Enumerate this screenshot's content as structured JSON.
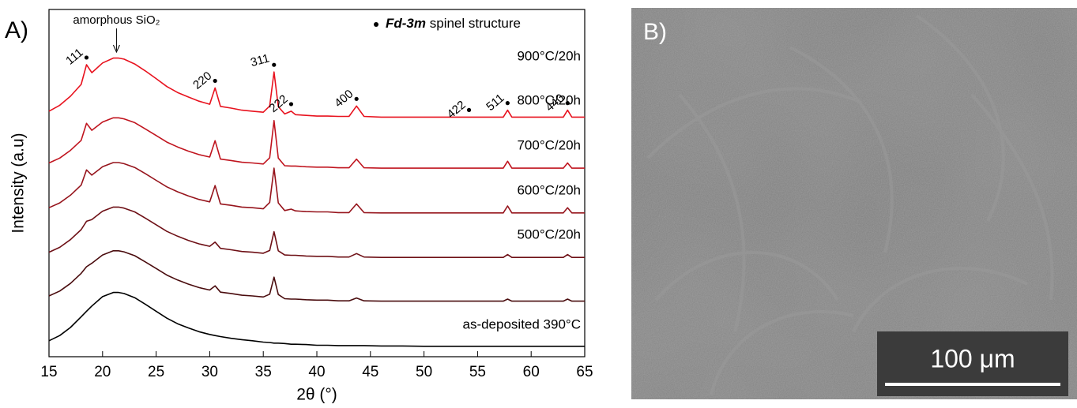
{
  "chart_data": {
    "type": "line",
    "panel_label": "A)",
    "xlabel": "2θ (°)",
    "ylabel": "Intensity (a.u)",
    "xlim": [
      15,
      65
    ],
    "ylim": [
      0,
      100
    ],
    "xticks": [
      15,
      20,
      25,
      30,
      35,
      40,
      45,
      50,
      55,
      60,
      65
    ],
    "legend": {
      "bold": "Fd-3m",
      "text": "spinel structure"
    },
    "amorphous_label": {
      "text": "amorphous SiO₂",
      "x": 21.3
    },
    "annotations": [
      {
        "text": "111",
        "x": 18.5
      },
      {
        "text": "220",
        "x": 30.5
      },
      {
        "text": "311",
        "x": 36
      },
      {
        "text": "222",
        "x": 37.6
      },
      {
        "text": "400",
        "x": 43.7
      },
      {
        "text": "422",
        "x": 54.2
      },
      {
        "text": "511",
        "x": 57.8
      },
      {
        "text": "440",
        "x": 63.4
      }
    ],
    "x": [
      15,
      16,
      17,
      18,
      18.5,
      19,
      20,
      21,
      21.5,
      22,
      23,
      24,
      25,
      26,
      27,
      28,
      29,
      30,
      30.5,
      31,
      32,
      33,
      34,
      35,
      35.6,
      36,
      36.4,
      37,
      37.6,
      38,
      39,
      40,
      41,
      42,
      43,
      43.7,
      44.4,
      46,
      48,
      50,
      52,
      54,
      56,
      57.4,
      57.8,
      58.2,
      60,
      62,
      63,
      63.4,
      63.8,
      65
    ],
    "series": [
      {
        "name": "900°C/20h",
        "color": "#e8121e",
        "values": [
          70.7,
          72.4,
          75.0,
          78.4,
          84.1,
          81.8,
          84.6,
          86.0,
          86.0,
          85.7,
          84.3,
          82.3,
          80.1,
          77.8,
          76.1,
          74.8,
          73.6,
          72.7,
          77.4,
          72.1,
          71.6,
          71.0,
          70.7,
          70.4,
          72.2,
          82.0,
          72.0,
          69.9,
          70.7,
          69.7,
          69.5,
          69.3,
          69.3,
          69.2,
          69.2,
          72.2,
          69.2,
          69,
          69,
          69,
          69,
          69,
          69,
          69,
          71,
          69,
          69,
          69,
          69,
          71,
          69,
          69
        ]
      },
      {
        "name": "800°C/20h",
        "color": "#c0141e",
        "values": [
          55.8,
          57.2,
          59.4,
          62.3,
          67.2,
          65.2,
          67.6,
          68.8,
          68.8,
          68.5,
          67.4,
          65.6,
          63.7,
          61.8,
          60.4,
          59.2,
          58.2,
          57.5,
          62.2,
          56.9,
          56.5,
          56.0,
          55.8,
          55.5,
          57.3,
          68.0,
          57.2,
          55.0,
          54.9,
          54.9,
          54.7,
          54.6,
          54.6,
          54.4,
          54.4,
          56.9,
          54.4,
          54.3,
          54.3,
          54.3,
          54.3,
          54.3,
          54.3,
          54.3,
          56.3,
          54.3,
          54.3,
          54.3,
          54.3,
          55.8,
          54.3,
          54.3
        ]
      },
      {
        "name": "700°C/20h",
        "color": "#96141c",
        "values": [
          42.9,
          44.3,
          46.5,
          49.4,
          53.8,
          52.3,
          54.7,
          55.9,
          55.9,
          55.6,
          54.5,
          52.7,
          50.8,
          48.9,
          47.5,
          46.3,
          45.3,
          44.6,
          49.3,
          44.0,
          43.6,
          43.1,
          42.9,
          42.6,
          44.4,
          54.3,
          44.3,
          42.1,
          42.5,
          42.0,
          41.8,
          41.7,
          41.7,
          41.5,
          41.5,
          44.0,
          41.5,
          41.4,
          41.4,
          41.4,
          41.4,
          41.4,
          41.4,
          41.4,
          43.4,
          41.4,
          41.4,
          41.4,
          41.4,
          42.9,
          41.4,
          41.4
        ]
      },
      {
        "name": "600°C/20h",
        "color": "#6e1016",
        "values": [
          30.1,
          31.5,
          33.7,
          36.6,
          39.0,
          39.5,
          41.9,
          43.1,
          43.1,
          42.8,
          41.7,
          39.9,
          38.0,
          36.1,
          34.7,
          33.5,
          32.5,
          31.8,
          33.0,
          31.2,
          30.8,
          30.3,
          30.1,
          29.8,
          30.6,
          36.0,
          30.5,
          29.3,
          29.2,
          29.2,
          29.0,
          28.9,
          28.9,
          28.7,
          28.7,
          29.7,
          28.7,
          28.6,
          28.6,
          28.6,
          28.6,
          28.6,
          28.6,
          28.6,
          29.4,
          28.6,
          28.6,
          28.6,
          28.6,
          29.4,
          28.6,
          28.6
        ]
      },
      {
        "name": "500°C/20h",
        "color": "#4a0c0e",
        "values": [
          17.5,
          18.9,
          21.1,
          24.0,
          25.9,
          26.9,
          29.3,
          30.5,
          30.5,
          30.2,
          29.1,
          27.3,
          25.4,
          23.5,
          22.1,
          20.9,
          19.9,
          19.2,
          20.4,
          18.6,
          18.2,
          17.7,
          17.5,
          17.2,
          18.0,
          22.9,
          17.9,
          16.7,
          16.6,
          16.6,
          16.4,
          16.3,
          16.3,
          16.1,
          16.1,
          16.9,
          16.1,
          16,
          16,
          16,
          16,
          16,
          16,
          16,
          16.6,
          16,
          16,
          16,
          16,
          16.6,
          16,
          16
        ]
      },
      {
        "name": "as-deposited 390°C",
        "color": "#000000",
        "values": [
          4.6,
          6.1,
          8.4,
          11.5,
          13.1,
          14.6,
          17.3,
          18.5,
          18.5,
          18.2,
          17,
          15.1,
          13.1,
          11.1,
          9.5,
          8.3,
          7.2,
          6.4,
          6.1,
          5.8,
          5.3,
          4.9,
          4.6,
          4.2,
          4.1,
          3.9,
          3.9,
          3.8,
          3.6,
          3.6,
          3.5,
          3.3,
          3.3,
          3.2,
          3.2,
          3.2,
          3.2,
          3.1,
          3.1,
          3.0,
          3.0,
          3.0,
          3.0,
          3.0,
          3.0,
          3.0,
          3.0,
          3.0,
          3.0,
          3.0,
          3.0,
          3.0
        ]
      }
    ]
  },
  "image_panel": {
    "label": "B)",
    "scale_bar": "100 μm"
  }
}
